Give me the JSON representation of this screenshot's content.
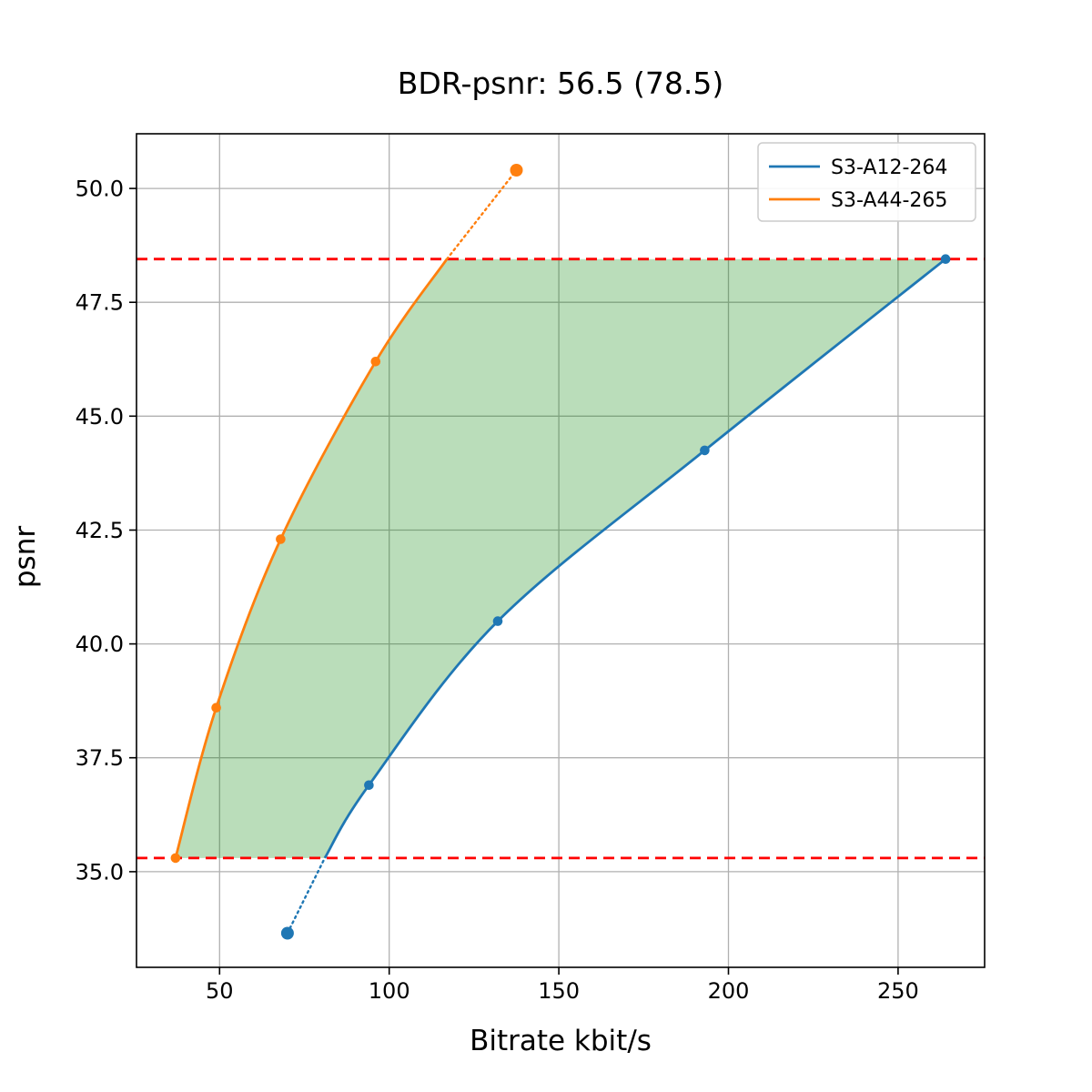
{
  "figure": {
    "title": "BDR-psnr: 56.5 (78.5)"
  },
  "chart_data": {
    "type": "line",
    "title": "BDR-psnr: 56.5 (78.5)",
    "xlabel": "Bitrate kbit/s",
    "ylabel": "psnr",
    "xlim": [
      25.5,
      275.5
    ],
    "ylim": [
      32.9,
      51.2
    ],
    "xticks": [
      50,
      100,
      150,
      200,
      250
    ],
    "xtick_labels": [
      "50",
      "100",
      "150",
      "200",
      "250"
    ],
    "yticks": [
      35,
      37.5,
      40,
      42.5,
      45,
      47.5,
      50
    ],
    "ytick_labels": [
      "35.0",
      "37.5",
      "40.0",
      "42.5",
      "45.0",
      "47.5",
      "50.0"
    ],
    "grid": true,
    "legend": {
      "position": "upper right",
      "entries": [
        "S3-A12-264",
        "S3-A44-265"
      ]
    },
    "series": [
      {
        "name": "S3-A12-264",
        "color": "#1f77b4",
        "markers": [
          [
            70,
            33.65
          ],
          [
            94,
            36.9
          ],
          [
            132,
            40.5
          ],
          [
            193,
            44.25
          ],
          [
            264,
            48.45
          ]
        ],
        "solid_segment": [
          [
            81,
            35.3
          ],
          [
            94,
            36.9
          ],
          [
            132,
            40.5
          ],
          [
            193,
            44.25
          ],
          [
            264,
            48.45
          ]
        ],
        "dotted_segment": [
          [
            70,
            33.65
          ],
          [
            81,
            35.3
          ]
        ],
        "large_marker_index": 0
      },
      {
        "name": "S3-A44-265",
        "color": "#ff7f0e",
        "markers": [
          [
            37,
            35.3
          ],
          [
            49,
            38.6
          ],
          [
            68,
            42.3
          ],
          [
            96,
            46.2
          ],
          [
            137.5,
            50.4
          ]
        ],
        "solid_segment": [
          [
            37,
            35.3
          ],
          [
            49,
            38.6
          ],
          [
            68,
            42.3
          ],
          [
            96,
            46.2
          ],
          [
            117,
            48.45
          ]
        ],
        "dotted_segment": [
          [
            117,
            48.45
          ],
          [
            137.5,
            50.4
          ]
        ],
        "large_marker_index": 4
      }
    ],
    "bd_bounds": {
      "lower": 35.3,
      "upper": 48.45,
      "line_color": "#ff0000",
      "line_style": "dashed"
    },
    "shaded_region": {
      "fill_color": "rgba(0,128,0,0.27)",
      "between": [
        "S3-A44-265",
        "S3-A12-264"
      ],
      "from_psnr": 35.3,
      "to_psnr": 48.45
    },
    "colors": {
      "background": "#ffffff",
      "grid": "#b0b0b0",
      "spine": "#000000",
      "text": "#000000"
    }
  }
}
